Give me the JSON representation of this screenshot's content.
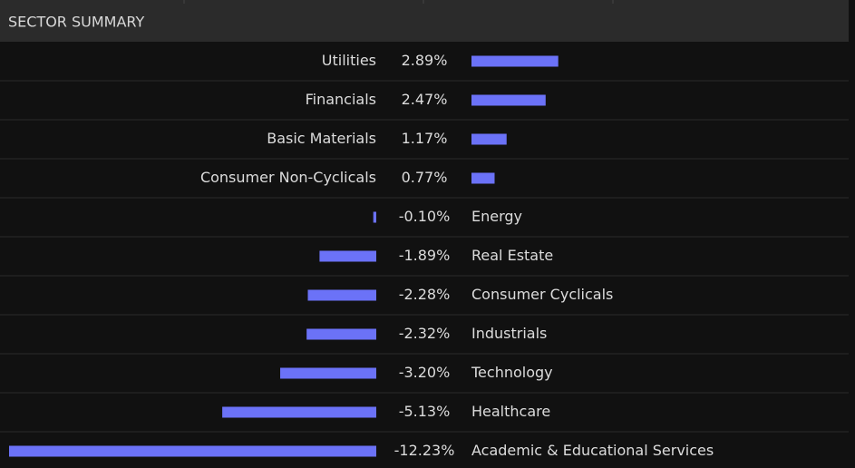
{
  "chart_data": {
    "type": "bar",
    "title": "SECTOR SUMMARY",
    "categories": [
      "Utilities",
      "Financials",
      "Basic Materials",
      "Consumer Non-Cyclicals",
      "Energy",
      "Real Estate",
      "Consumer Cyclicals",
      "Industrials",
      "Technology",
      "Healthcare",
      "Academic & Educational Services"
    ],
    "values": [
      2.89,
      2.47,
      1.17,
      0.77,
      -0.1,
      -1.89,
      -2.28,
      -2.32,
      -3.2,
      -5.13,
      -12.23
    ],
    "value_labels": [
      "2.89%",
      "2.47%",
      "1.17%",
      "0.77%",
      "-0.10%",
      "-1.89%",
      "-2.28%",
      "-2.32%",
      "-3.20%",
      "-5.13%",
      "-12.23%"
    ],
    "color": "#6b72f7"
  }
}
